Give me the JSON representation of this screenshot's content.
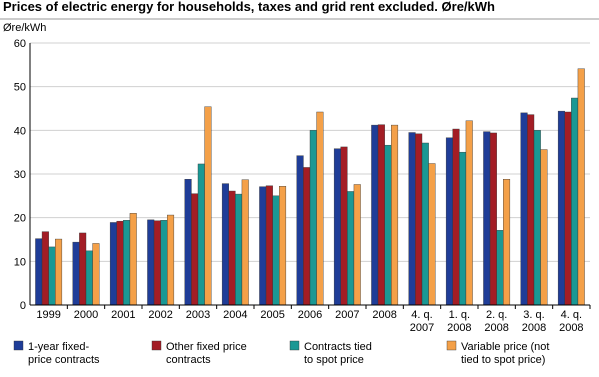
{
  "chart_data": {
    "type": "bar",
    "title": "Prices of electric energy for households, taxes and grid rent excluded. Øre/kWh",
    "y_label": "Øre/kWh",
    "categories": [
      "1999",
      "2000",
      "2001",
      "2002",
      "2003",
      "2004",
      "2005",
      "2006",
      "2007",
      "2008",
      "4. q.\n2007",
      "1. q.\n2008",
      "2. q.\n2008",
      "3. q.\n2008",
      "4. q.\n2008"
    ],
    "series": [
      {
        "name": "1-year fixed-\nprice contracts",
        "color": "#1f3d98",
        "values": [
          15.2,
          14.4,
          18.9,
          19.5,
          28.8,
          27.8,
          27.1,
          34.2,
          35.8,
          41.2,
          39.5,
          38.3,
          39.7,
          44.0,
          44.4
        ]
      },
      {
        "name": "Other fixed price\ncontracts",
        "color": "#a31d25",
        "values": [
          16.8,
          16.5,
          19.2,
          19.3,
          25.5,
          26.1,
          27.3,
          31.5,
          36.2,
          41.3,
          39.2,
          40.3,
          39.4,
          43.6,
          44.2
        ]
      },
      {
        "name": "Contracts tied\nto spot price",
        "color": "#1a9894",
        "values": [
          13.3,
          12.4,
          19.4,
          19.4,
          32.3,
          25.4,
          25.0,
          40.0,
          26.0,
          36.6,
          37.1,
          35.0,
          17.1,
          40.0,
          47.4
        ]
      },
      {
        "name": "Variable price (not\ntied to spot price)",
        "color": "#f4a048",
        "values": [
          15.1,
          14.1,
          21.0,
          20.6,
          45.4,
          28.7,
          27.2,
          44.2,
          27.6,
          41.2,
          32.4,
          42.2,
          28.8,
          35.6,
          54.1
        ]
      }
    ],
    "ylim": [
      0,
      60
    ],
    "yticks": [
      0,
      10,
      20,
      30,
      40,
      50,
      60
    ],
    "grid": true,
    "legend": "bottom"
  }
}
